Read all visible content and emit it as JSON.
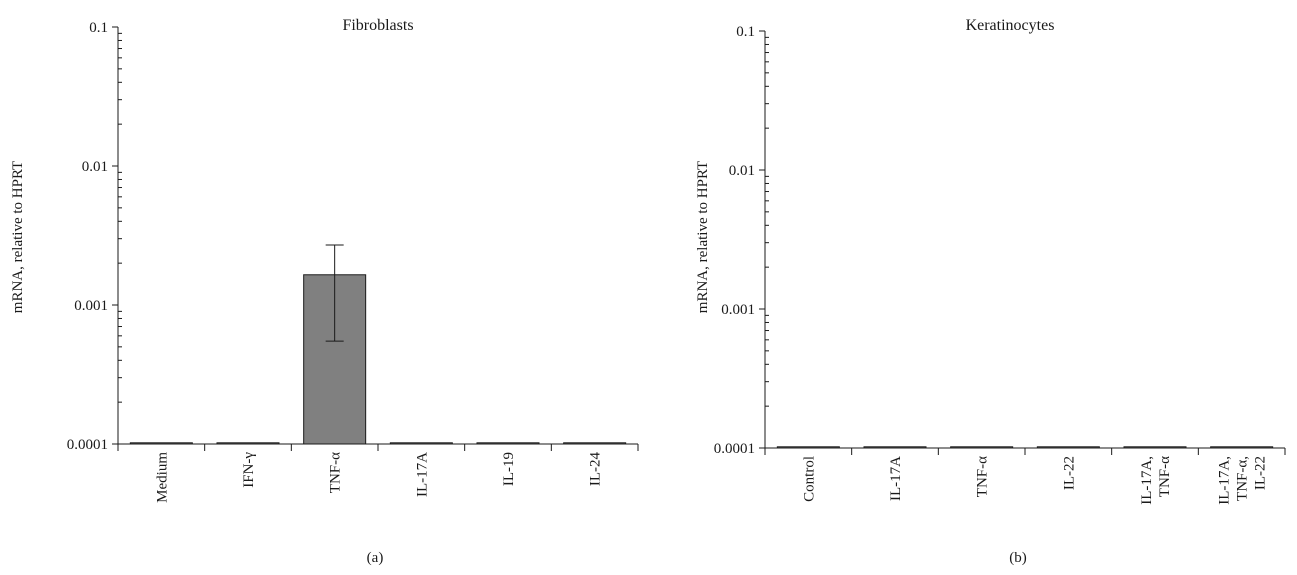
{
  "chart_data": [
    {
      "type": "bar",
      "panel_label": "(a)",
      "title": "Fibroblasts",
      "xlabel": "",
      "ylabel": "mRNA, relative to HPRT",
      "yscale": "log",
      "ylim": [
        0.0001,
        0.1
      ],
      "yticks": [
        "0.0001",
        "0.001",
        "0.01",
        "0.1"
      ],
      "categories": [
        [
          "Medium"
        ],
        [
          "IFN-γ"
        ],
        [
          "TNF-α"
        ],
        [
          "IL-17A"
        ],
        [
          "IL-19"
        ],
        [
          "IL-24"
        ]
      ],
      "values": [
        0.0001,
        0.0001,
        0.00165,
        0.0001,
        0.0001,
        0.0001
      ],
      "error_upper": [
        null,
        null,
        0.0027,
        null,
        null,
        null
      ],
      "error_lower": [
        null,
        null,
        0.00055,
        null,
        null,
        null
      ],
      "grid": false,
      "colors": {
        "bar": "#808080",
        "axis": "#1a1a1a"
      }
    },
    {
      "type": "bar",
      "panel_label": "(b)",
      "title": "Keratinocytes",
      "xlabel": "",
      "ylabel": "mRNA, relative to HPRT",
      "yscale": "log",
      "ylim": [
        0.0001,
        0.1
      ],
      "yticks": [
        "0.0001",
        "0.001",
        "0.01",
        "0.1"
      ],
      "categories": [
        [
          "Control"
        ],
        [
          "IL-17A"
        ],
        [
          "TNF-α"
        ],
        [
          "IL-22"
        ],
        [
          "IL-17A,",
          "TNF-α"
        ],
        [
          "IL-17A,",
          "TNF-α,",
          "IL-22"
        ]
      ],
      "values": [
        0.0001,
        0.0001,
        0.0001,
        0.0001,
        0.0001,
        0.0001
      ],
      "error_upper": [
        null,
        null,
        null,
        null,
        null,
        null
      ],
      "error_lower": [
        null,
        null,
        null,
        null,
        null,
        null
      ],
      "grid": false,
      "colors": {
        "bar": "#808080",
        "axis": "#1a1a1a"
      }
    }
  ]
}
